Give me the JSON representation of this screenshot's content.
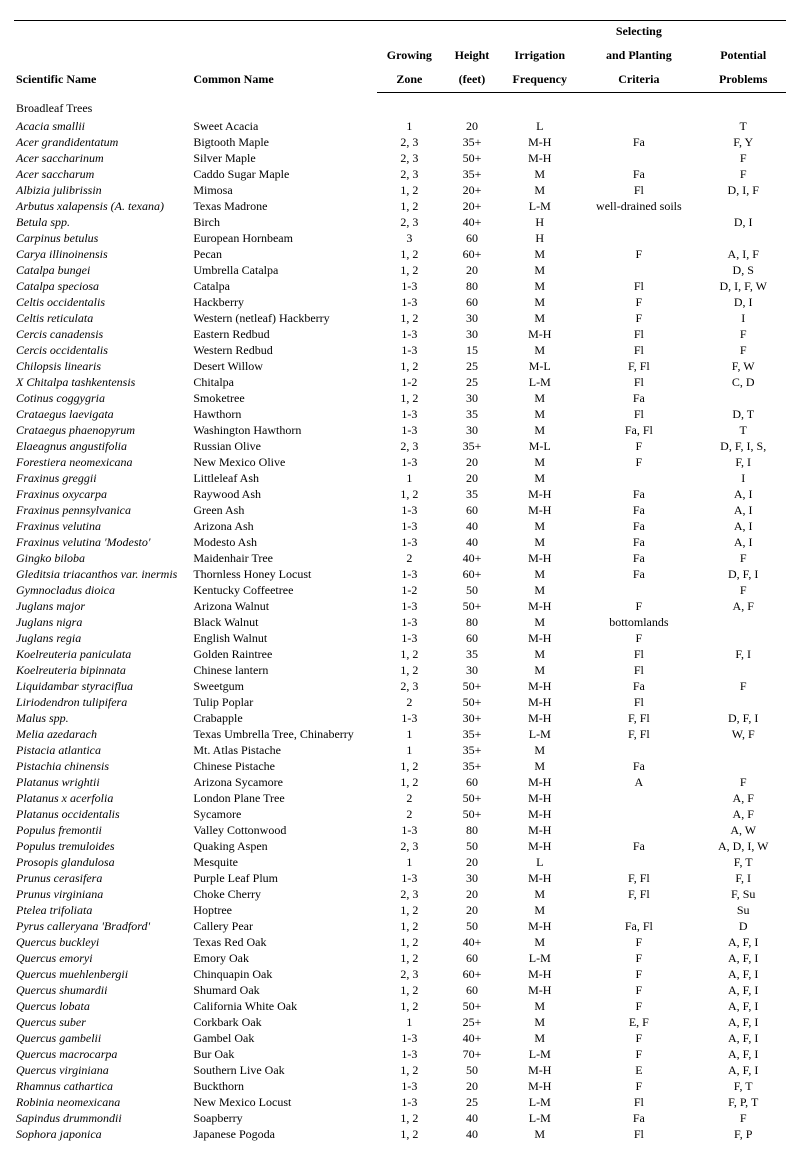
{
  "headers": {
    "scientific": "Scientific Name",
    "common": "Common Name",
    "zone1": "Growing",
    "zone2": "Zone",
    "height1": "Height",
    "height2": "(feet)",
    "irr1": "Irrigation",
    "irr2": "Frequency",
    "sel1": "Selecting",
    "sel2": "and Planting",
    "sel3": "Criteria",
    "prob1": "Potential",
    "prob2": "Problems"
  },
  "section": "Broadleaf Trees",
  "rows": [
    {
      "sci": "Acacia smallii",
      "common": "Sweet Acacia",
      "zone": "1",
      "height": "20",
      "irr": "L",
      "sel": "",
      "prob": "T"
    },
    {
      "sci": "Acer grandidentatum",
      "common": "Bigtooth Maple",
      "zone": "2, 3",
      "height": "35+",
      "irr": "M-H",
      "sel": "Fa",
      "prob": "F, Y"
    },
    {
      "sci": "Acer saccharinum",
      "common": "Silver Maple",
      "zone": "2, 3",
      "height": "50+",
      "irr": "M-H",
      "sel": "",
      "prob": "F"
    },
    {
      "sci": "Acer saccharum",
      "common": "Caddo Sugar Maple",
      "zone": "2, 3",
      "height": "35+",
      "irr": "M",
      "sel": "Fa",
      "prob": "F"
    },
    {
      "sci": "Albizia julibrissin",
      "common": "Mimosa",
      "zone": "1, 2",
      "height": "20+",
      "irr": "M",
      "sel": "Fl",
      "prob": "D, I, F"
    },
    {
      "sci": "Arbutus xalapensis (A. texana)",
      "common": "Texas Madrone",
      "zone": "1, 2",
      "height": "20+",
      "irr": "L-M",
      "sel": "well-drained soils",
      "prob": ""
    },
    {
      "sci": "Betula spp.",
      "common": "Birch",
      "zone": "2, 3",
      "height": "40+",
      "irr": "H",
      "sel": "",
      "prob": "D, I"
    },
    {
      "sci": "Carpinus betulus",
      "common": "European Hornbeam",
      "zone": "3",
      "height": "60",
      "irr": "H",
      "sel": "",
      "prob": ""
    },
    {
      "sci": "Carya illinoinensis",
      "common": "Pecan",
      "zone": "1, 2",
      "height": "60+",
      "irr": "M",
      "sel": "F",
      "prob": "A, I, F"
    },
    {
      "sci": "Catalpa bungei",
      "common": "Umbrella Catalpa",
      "zone": "1, 2",
      "height": "20",
      "irr": "M",
      "sel": "",
      "prob": "D, S"
    },
    {
      "sci": "Catalpa speciosa",
      "common": "Catalpa",
      "zone": "1-3",
      "height": "80",
      "irr": "M",
      "sel": "Fl",
      "prob": "D, I, F, W"
    },
    {
      "sci": "Celtis occidentalis",
      "common": "Hackberry",
      "zone": "1-3",
      "height": "60",
      "irr": "M",
      "sel": "F",
      "prob": "D, I"
    },
    {
      "sci": "Celtis reticulata",
      "common": "Western (netleaf) Hackberry",
      "zone": "1, 2",
      "height": "30",
      "irr": "M",
      "sel": "F",
      "prob": "I"
    },
    {
      "sci": "Cercis canadensis",
      "common": "Eastern Redbud",
      "zone": "1-3",
      "height": "30",
      "irr": "M-H",
      "sel": "Fl",
      "prob": "F"
    },
    {
      "sci": "Cercis occidentalis",
      "common": "Western Redbud",
      "zone": "1-3",
      "height": "15",
      "irr": "M",
      "sel": "Fl",
      "prob": "F"
    },
    {
      "sci": "Chilopsis linearis",
      "common": "Desert Willow",
      "zone": "1, 2",
      "height": "25",
      "irr": "M-L",
      "sel": "F, Fl",
      "prob": "F, W"
    },
    {
      "sci": "X Chitalpa tashkentensis",
      "common": "Chitalpa",
      "zone": "1-2",
      "height": "25",
      "irr": "L-M",
      "sel": "Fl",
      "prob": "C, D"
    },
    {
      "sci": "Cotinus coggygria",
      "common": "Smoketree",
      "zone": "1, 2",
      "height": "30",
      "irr": "M",
      "sel": "Fa",
      "prob": ""
    },
    {
      "sci": "Crataegus laevigata",
      "common": "Hawthorn",
      "zone": "1-3",
      "height": "35",
      "irr": "M",
      "sel": "Fl",
      "prob": "D, T"
    },
    {
      "sci": "Crataegus phaenopyrum",
      "common": "Washington Hawthorn",
      "zone": "1-3",
      "height": "30",
      "irr": "M",
      "sel": "Fa, Fl",
      "prob": "T"
    },
    {
      "sci": "Elaeagnus angustifolia",
      "common": "Russian Olive",
      "zone": "2, 3",
      "height": "35+",
      "irr": "M-L",
      "sel": "F",
      "prob": "D, F, I, S,"
    },
    {
      "sci": "Forestiera neomexicana",
      "common": "New Mexico Olive",
      "zone": "1-3",
      "height": "20",
      "irr": "M",
      "sel": "F",
      "prob": "F, I"
    },
    {
      "sci": "Fraxinus greggii",
      "common": "Littleleaf Ash",
      "zone": "1",
      "height": "20",
      "irr": "M",
      "sel": "",
      "prob": "I"
    },
    {
      "sci": "Fraxinus oxycarpa",
      "common": "Raywood Ash",
      "zone": "1, 2",
      "height": "35",
      "irr": "M-H",
      "sel": "Fa",
      "prob": "A, I"
    },
    {
      "sci": "Fraxinus pennsylvanica",
      "common": "Green Ash",
      "zone": "1-3",
      "height": "60",
      "irr": "M-H",
      "sel": "Fa",
      "prob": "A, I"
    },
    {
      "sci": "Fraxinus velutina",
      "common": "Arizona Ash",
      "zone": "1-3",
      "height": "40",
      "irr": "M",
      "sel": "Fa",
      "prob": "A, I"
    },
    {
      "sci": "Fraxinus velutina 'Modesto'",
      "common": "Modesto Ash",
      "zone": "1-3",
      "height": "40",
      "irr": "M",
      "sel": "Fa",
      "prob": "A, I"
    },
    {
      "sci": "Gingko biloba",
      "common": "Maidenhair Tree",
      "zone": "2",
      "height": "40+",
      "irr": "M-H",
      "sel": "Fa",
      "prob": "F"
    },
    {
      "sci": "Gleditsia triacanthos var. inermis",
      "common": "Thornless Honey Locust",
      "zone": "1-3",
      "height": "60+",
      "irr": "M",
      "sel": "Fa",
      "prob": "D, F, I"
    },
    {
      "sci": "Gymnocladus dioica",
      "common": "Kentucky Coffeetree",
      "zone": "1-2",
      "height": "50",
      "irr": "M",
      "sel": "",
      "prob": "F"
    },
    {
      "sci": "Juglans major",
      "common": "Arizona Walnut",
      "zone": "1-3",
      "height": "50+",
      "irr": "M-H",
      "sel": "F",
      "prob": "A, F"
    },
    {
      "sci": "Juglans nigra",
      "common": "Black Walnut",
      "zone": "1-3",
      "height": "80",
      "irr": "M",
      "sel": "bottomlands",
      "prob": ""
    },
    {
      "sci": "Juglans regia",
      "common": "English Walnut",
      "zone": "1-3",
      "height": "60",
      "irr": "M-H",
      "sel": "F",
      "prob": ""
    },
    {
      "sci": "Koelreuteria paniculata",
      "common": "Golden Raintree",
      "zone": "1, 2",
      "height": "35",
      "irr": "M",
      "sel": "Fl",
      "prob": "F, I"
    },
    {
      "sci": "Koelreuteria bipinnata",
      "common": "Chinese lantern",
      "zone": "1, 2",
      "height": "30",
      "irr": "M",
      "sel": "Fl",
      "prob": ""
    },
    {
      "sci": "Liquidambar styraciflua",
      "common": "Sweetgum",
      "zone": "2, 3",
      "height": "50+",
      "irr": "M-H",
      "sel": "Fa",
      "prob": "F"
    },
    {
      "sci": "Liriodendron tulipifera",
      "common": "Tulip Poplar",
      "zone": "2",
      "height": "50+",
      "irr": "M-H",
      "sel": "Fl",
      "prob": ""
    },
    {
      "sci": "Malus spp.",
      "common": "Crabapple",
      "zone": "1-3",
      "height": "30+",
      "irr": "M-H",
      "sel": "F, Fl",
      "prob": "D, F, I"
    },
    {
      "sci": "Melia azedarach",
      "common": "Texas Umbrella Tree, Chinaberry",
      "zone": "1",
      "height": "35+",
      "irr": "L-M",
      "sel": "F, Fl",
      "prob": "W, F"
    },
    {
      "sci": "Pistacia atlantica",
      "common": "Mt. Atlas Pistache",
      "zone": "1",
      "height": "35+",
      "irr": "M",
      "sel": "",
      "prob": ""
    },
    {
      "sci": "Pistachia chinensis",
      "common": "Chinese Pistache",
      "zone": "1, 2",
      "height": "35+",
      "irr": "M",
      "sel": "Fa",
      "prob": ""
    },
    {
      "sci": "Platanus wrightii",
      "common": "Arizona Sycamore",
      "zone": "1, 2",
      "height": "60",
      "irr": "M-H",
      "sel": "A",
      "prob": "F"
    },
    {
      "sci": "Platanus x acerfolia",
      "common": "London Plane Tree",
      "zone": "2",
      "height": "50+",
      "irr": "M-H",
      "sel": "",
      "prob": "A, F"
    },
    {
      "sci": "Platanus occidentalis",
      "common": "Sycamore",
      "zone": "2",
      "height": "50+",
      "irr": "M-H",
      "sel": "",
      "prob": "A, F"
    },
    {
      "sci": "Populus fremontii",
      "common": "Valley Cottonwood",
      "zone": "1-3",
      "height": "80",
      "irr": "M-H",
      "sel": "",
      "prob": "A, W"
    },
    {
      "sci": "Populus tremuloides",
      "common": "Quaking Aspen",
      "zone": "2, 3",
      "height": "50",
      "irr": "M-H",
      "sel": "Fa",
      "prob": "A, D, I, W"
    },
    {
      "sci": "Prosopis glandulosa",
      "common": "Mesquite",
      "zone": "1",
      "height": "20",
      "irr": "L",
      "sel": "",
      "prob": "F, T"
    },
    {
      "sci": "Prunus cerasifera",
      "common": "Purple Leaf Plum",
      "zone": "1-3",
      "height": "30",
      "irr": "M-H",
      "sel": "F, Fl",
      "prob": "F, I"
    },
    {
      "sci": "Prunus virginiana",
      "common": "Choke Cherry",
      "zone": "2, 3",
      "height": "20",
      "irr": "M",
      "sel": "F, Fl",
      "prob": "F, Su"
    },
    {
      "sci": "Ptelea trifoliata",
      "common": "Hoptree",
      "zone": "1, 2",
      "height": "20",
      "irr": "M",
      "sel": "",
      "prob": "Su"
    },
    {
      "sci": "Pyrus calleryana 'Bradford'",
      "common": "Callery Pear",
      "zone": "1, 2",
      "height": "50",
      "irr": "M-H",
      "sel": "Fa, Fl",
      "prob": "D"
    },
    {
      "sci": "Quercus buckleyi",
      "common": "Texas Red Oak",
      "zone": "1, 2",
      "height": "40+",
      "irr": "M",
      "sel": "F",
      "prob": "A, F, I"
    },
    {
      "sci": "Quercus emoryi",
      "common": "Emory Oak",
      "zone": "1, 2",
      "height": "60",
      "irr": "L-M",
      "sel": "F",
      "prob": "A, F, I"
    },
    {
      "sci": "Quercus muehlenbergii",
      "common": "Chinquapin Oak",
      "zone": "2, 3",
      "height": "60+",
      "irr": "M-H",
      "sel": "F",
      "prob": "A, F, I"
    },
    {
      "sci": "Quercus shumardii",
      "common": "Shumard Oak",
      "zone": "1, 2",
      "height": "60",
      "irr": "M-H",
      "sel": "F",
      "prob": "A, F, I"
    },
    {
      "sci": "Quercus lobata",
      "common": "California White Oak",
      "zone": "1, 2",
      "height": "50+",
      "irr": "M",
      "sel": "F",
      "prob": "A, F, I"
    },
    {
      "sci": "Quercus suber",
      "common": "Corkbark Oak",
      "zone": "1",
      "height": "25+",
      "irr": "M",
      "sel": "E, F",
      "prob": "A, F, I"
    },
    {
      "sci": "Quercus gambelii",
      "common": "Gambel Oak",
      "zone": "1-3",
      "height": "40+",
      "irr": "M",
      "sel": "F",
      "prob": "A, F, I"
    },
    {
      "sci": "Quercus macrocarpa",
      "common": "Bur Oak",
      "zone": "1-3",
      "height": "70+",
      "irr": "L-M",
      "sel": "F",
      "prob": "A, F, I"
    },
    {
      "sci": "Quercus virginiana",
      "common": "Southern Live Oak",
      "zone": "1, 2",
      "height": "50",
      "irr": "M-H",
      "sel": "E",
      "prob": "A, F, I"
    },
    {
      "sci": "Rhamnus cathartica",
      "common": "Buckthorn",
      "zone": "1-3",
      "height": "20",
      "irr": "M-H",
      "sel": "F",
      "prob": "F, T"
    },
    {
      "sci": "Robinia neomexicana",
      "common": "New Mexico Locust",
      "zone": "1-3",
      "height": "25",
      "irr": "L-M",
      "sel": "Fl",
      "prob": "F, P, T"
    },
    {
      "sci": "Sapindus drummondii",
      "common": "Soapberry",
      "zone": "1, 2",
      "height": "40",
      "irr": "L-M",
      "sel": "Fa",
      "prob": "F"
    },
    {
      "sci": "Sophora japonica",
      "common": "Japanese Pogoda",
      "zone": "1, 2",
      "height": "40",
      "irr": "M",
      "sel": "Fl",
      "prob": "F, P"
    }
  ]
}
